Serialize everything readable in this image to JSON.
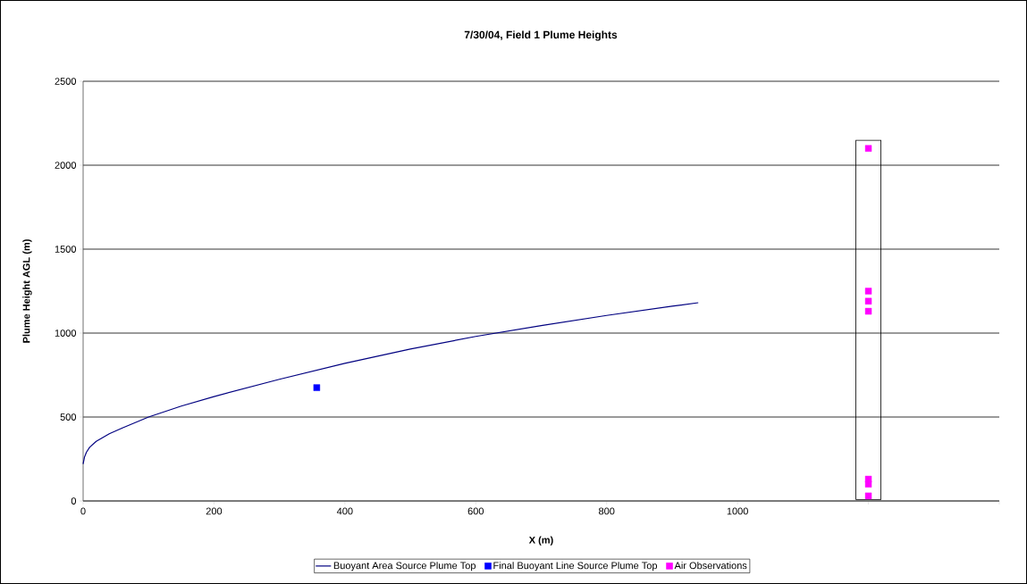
{
  "chart_data": {
    "type": "scatter",
    "title": "7/30/04, Field 1 Plume Heights",
    "xlabel": "X (m)",
    "ylabel": "Plume Height AGL (m)",
    "xlim": [
      0,
      1400
    ],
    "ylim": [
      0,
      2500
    ],
    "xticks": [
      0,
      200,
      400,
      600,
      800,
      1000,
      {
        "value": 1200,
        "label": null
      },
      {
        "value": 1400,
        "label": null
      }
    ],
    "yticks": [
      0,
      500,
      1000,
      1500,
      2000,
      2500
    ],
    "grid": "y",
    "legend": "bottom",
    "series": [
      {
        "name": "Buoyant Area Source Plume Top",
        "type": "line",
        "marker": "none",
        "color": "#000080",
        "x": [
          0,
          2,
          5,
          10,
          20,
          40,
          60,
          100,
          150,
          200,
          300,
          400,
          500,
          600,
          700,
          800,
          900,
          940
        ],
        "values": [
          220,
          260,
          290,
          320,
          355,
          400,
          435,
          500,
          565,
          622,
          725,
          820,
          905,
          980,
          1045,
          1105,
          1160,
          1181
        ]
      },
      {
        "name": "Final Buoyant Line Source Plume Top",
        "marker": "square",
        "color": "#0000ff",
        "x": [
          357
        ],
        "values": [
          675
        ]
      },
      {
        "name": "Air Observations",
        "marker": "square",
        "color": "#ff00ff",
        "x": [
          1200,
          1200,
          1200,
          1200,
          1200,
          1200,
          1200
        ],
        "values": [
          2100,
          1250,
          1190,
          1130,
          130,
          100,
          30
        ]
      }
    ]
  }
}
